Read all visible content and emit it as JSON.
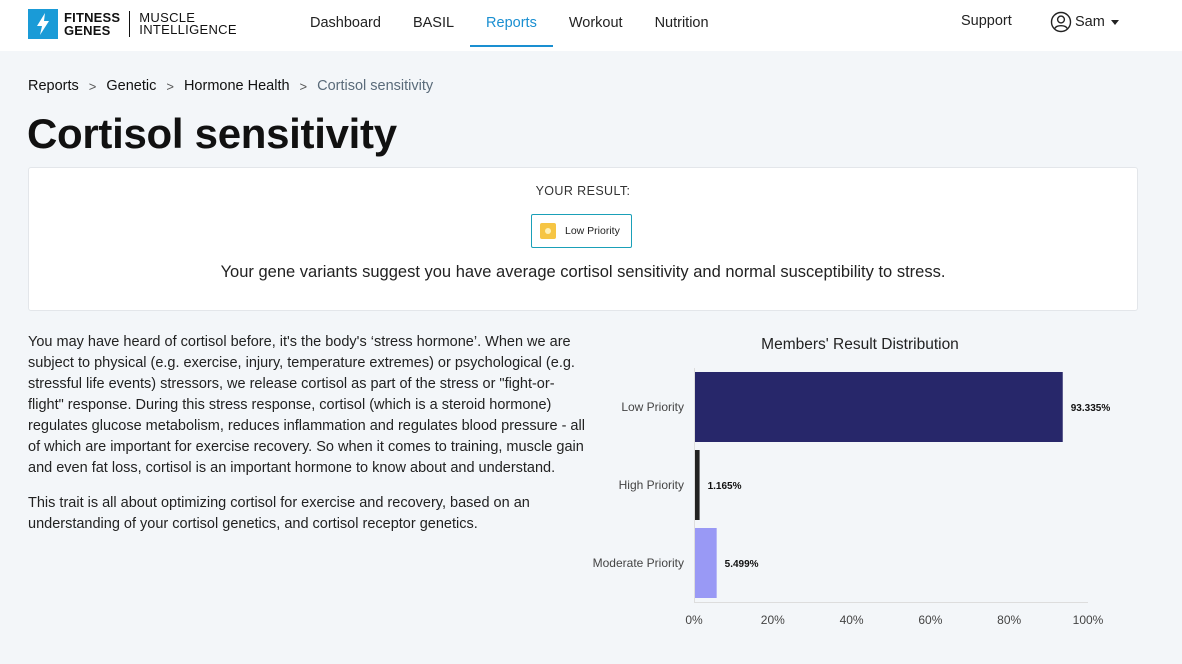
{
  "brand": {
    "name_a_line1": "FITNESS",
    "name_a_line2": "GENES",
    "name_b_line1": "MUSCLE",
    "name_b_line2": "INTELLIGENCE",
    "mark_color": "#1a9bd7"
  },
  "nav": {
    "items": [
      {
        "label": "Dashboard",
        "active": false
      },
      {
        "label": "BASIL",
        "active": false
      },
      {
        "label": "Reports",
        "active": true
      },
      {
        "label": "Workout",
        "active": false
      },
      {
        "label": "Nutrition",
        "active": false
      }
    ],
    "support_label": "Support",
    "user_name": "Sam",
    "active_color": "#1a8fd1"
  },
  "breadcrumb": {
    "items": [
      "Reports",
      "Genetic",
      "Hormone Health",
      "Cortisol sensitivity"
    ],
    "separator": ">"
  },
  "page": {
    "title": "Cortisol sensitivity"
  },
  "result": {
    "label": "YOUR RESULT:",
    "badge_text": "Low Priority",
    "badge_icon": "circle-badge-icon",
    "badge_color": "#f6c544",
    "summary": "Your gene variants suggest you have average cortisol sensitivity and normal susceptibility to stress."
  },
  "description": {
    "paragraphs": [
      "You may have heard of cortisol before, it's the body's ‘stress hormone’. When we are subject to physical (e.g. exercise, injury, temperature extremes) or psychological (e.g. stressful life events) stressors, we release cortisol as part of the stress or \"fight-or-flight\" response. During this stress response, cortisol (which is a steroid hormone) regulates glucose metabolism, reduces inflammation and regulates blood pressure - all of which are important for exercise recovery. So when it comes to training, muscle gain and even fat loss, cortisol is an important hormone to know about and understand.",
      "This trait is all about optimizing cortisol for exercise and recovery, based on an understanding of your cortisol genetics, and cortisol receptor genetics."
    ]
  },
  "chart_data": {
    "type": "bar",
    "orientation": "horizontal",
    "title": "Members' Result Distribution",
    "categories": [
      "Low Priority",
      "High Priority",
      "Moderate Priority"
    ],
    "values": [
      93.335,
      1.165,
      5.499
    ],
    "value_labels": [
      "93.335%",
      "1.165%",
      "5.499%"
    ],
    "colors": [
      "#27276a",
      "#222222",
      "#9999f5"
    ],
    "xlim": [
      0,
      100
    ],
    "x_ticks": [
      0,
      20,
      40,
      60,
      80,
      100
    ],
    "x_tick_labels": [
      "0%",
      "20%",
      "40%",
      "60%",
      "80%",
      "100%"
    ],
    "xlabel": "",
    "ylabel": "",
    "grid": false,
    "legend": "none"
  }
}
